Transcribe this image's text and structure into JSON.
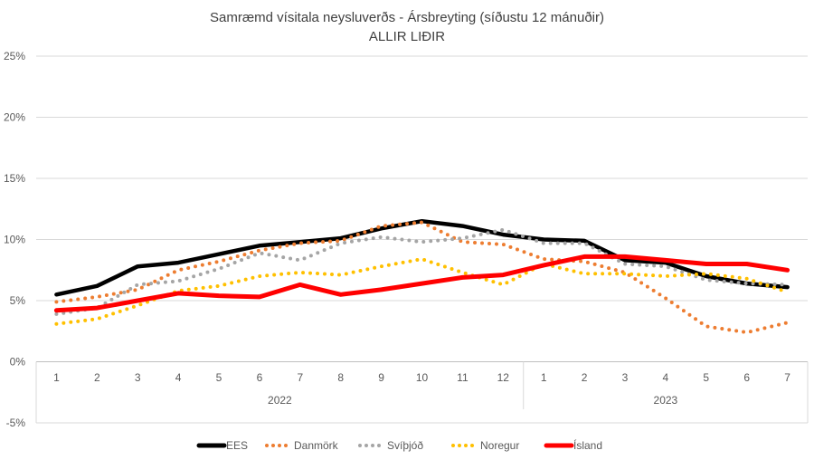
{
  "chart_data": {
    "type": "line",
    "title": "Samræmd vísitala neysluverðs - Ársbreyting (síðustu 12 mánuðir)",
    "subtitle": "ALLIR LIÐIR",
    "xlabel": "",
    "ylabel": "",
    "ylim": [
      -5,
      25
    ],
    "yticks": [
      "-5%",
      "0%",
      "5%",
      "10%",
      "15%",
      "20%",
      "25%"
    ],
    "grid": true,
    "legend": "bottom",
    "categories": [
      "1",
      "2",
      "3",
      "4",
      "5",
      "6",
      "7",
      "8",
      "9",
      "10",
      "11",
      "12",
      "1",
      "2",
      "3",
      "4",
      "5",
      "6",
      "7"
    ],
    "groups": [
      {
        "label": "2022",
        "count": 12
      },
      {
        "label": "2023",
        "count": 7
      }
    ],
    "series": [
      {
        "name": "EES",
        "color": "#000000",
        "style": "solid",
        "values": [
          5.5,
          6.2,
          7.8,
          8.1,
          8.8,
          9.5,
          9.8,
          10.1,
          10.9,
          11.5,
          11.1,
          10.4,
          10.0,
          9.9,
          8.3,
          8.1,
          7.0,
          6.4,
          6.1
        ]
      },
      {
        "name": "Danmörk",
        "color": "#ED7D31",
        "style": "dotted",
        "values": [
          4.9,
          5.3,
          5.9,
          7.5,
          8.2,
          9.1,
          9.7,
          9.9,
          11.1,
          11.4,
          9.8,
          9.6,
          8.4,
          8.2,
          7.3,
          5.2,
          2.9,
          2.4,
          3.2
        ]
      },
      {
        "name": "Svíþjóð",
        "color": "#A5A5A5",
        "style": "dotted",
        "values": [
          3.9,
          4.4,
          6.3,
          6.6,
          7.6,
          8.9,
          8.3,
          9.7,
          10.2,
          9.8,
          10.1,
          10.8,
          9.7,
          9.7,
          8.0,
          7.8,
          6.7,
          6.4,
          6.3
        ]
      },
      {
        "name": "Noregur",
        "color": "#FFC000",
        "style": "dotted",
        "values": [
          3.1,
          3.5,
          4.6,
          5.8,
          6.2,
          7.0,
          7.3,
          7.1,
          7.8,
          8.4,
          7.3,
          6.3,
          8.0,
          7.2,
          7.2,
          7.0,
          7.2,
          6.8,
          5.7
        ]
      },
      {
        "name": "Ísland",
        "color": "#FF0000",
        "style": "solid",
        "values": [
          4.2,
          4.4,
          5.0,
          5.6,
          5.4,
          5.3,
          6.3,
          5.5,
          5.9,
          6.4,
          6.9,
          7.1,
          7.9,
          8.6,
          8.6,
          8.3,
          8.0,
          8.0,
          7.5
        ]
      }
    ]
  }
}
